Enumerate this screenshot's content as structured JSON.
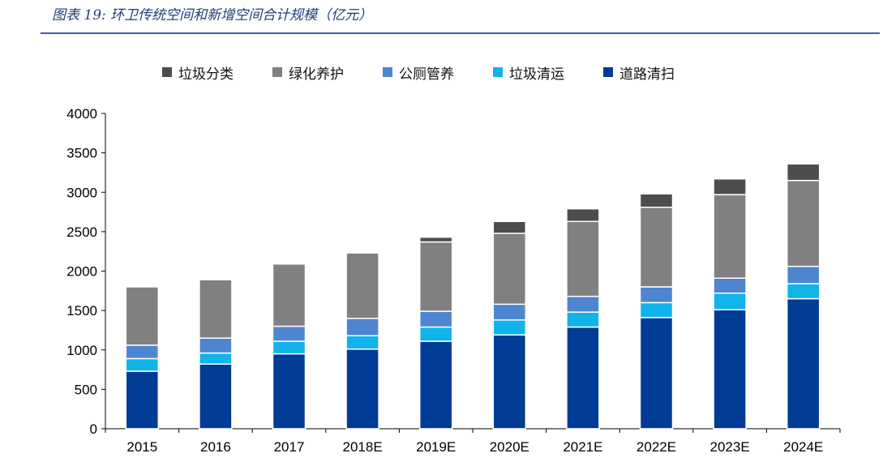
{
  "figure_title": "图表 19: 环卫传统空间和新增空间合计规模（亿元）",
  "chart_data": {
    "type": "bar",
    "stacked": true,
    "title": "环卫传统空间和新增空间合计规模（亿元）",
    "categories": [
      "2015",
      "2016",
      "2017",
      "2018E",
      "2019E",
      "2020E",
      "2021E",
      "2022E",
      "2023E",
      "2024E"
    ],
    "ylim": [
      0,
      4000
    ],
    "yticks": [
      0,
      500,
      1000,
      1500,
      2000,
      2500,
      3000,
      3500,
      4000
    ],
    "xlabel": "",
    "ylabel": "",
    "series": [
      {
        "name": "道路清扫",
        "color": "#003b96",
        "values": [
          730,
          820,
          950,
          1010,
          1110,
          1190,
          1290,
          1410,
          1510,
          1650
        ]
      },
      {
        "name": "垃圾清运",
        "color": "#10b3ea",
        "values": [
          160,
          140,
          160,
          170,
          180,
          190,
          190,
          190,
          210,
          190
        ]
      },
      {
        "name": "公厕管养",
        "color": "#4d85d0",
        "values": [
          170,
          190,
          190,
          220,
          200,
          200,
          200,
          200,
          190,
          220
        ]
      },
      {
        "name": "绿化养护",
        "color": "#808080",
        "values": [
          740,
          740,
          790,
          830,
          880,
          900,
          950,
          1010,
          1060,
          1090
        ]
      },
      {
        "name": "垃圾分类",
        "color": "#4d4d4d",
        "values": [
          0,
          0,
          0,
          0,
          60,
          150,
          160,
          170,
          200,
          210
        ]
      }
    ],
    "legend": [
      "垃圾分类",
      "绿化养护",
      "公厕管养",
      "垃圾清运",
      "道路清扫"
    ],
    "legend_position": "top"
  }
}
